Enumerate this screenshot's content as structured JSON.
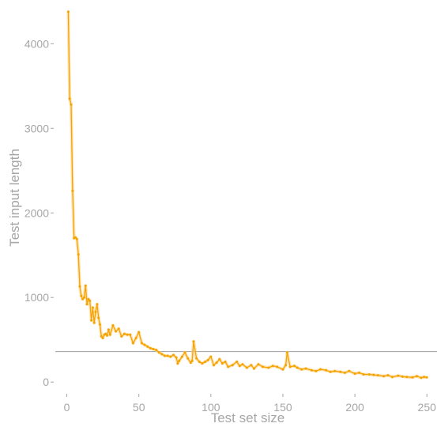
{
  "chart_data": {
    "type": "line",
    "title": "",
    "xlabel": "Test set size",
    "ylabel": "Test input length",
    "xlim": [
      -8,
      257
    ],
    "ylim": [
      -120,
      4480
    ],
    "xticks": [
      0,
      50,
      100,
      150,
      200,
      250
    ],
    "yticks": [
      0,
      1000,
      2000,
      3000,
      4000
    ],
    "xtick_labels": [
      "0",
      "50",
      "100",
      "150",
      "200",
      "250"
    ],
    "ytick_labels": [
      "0",
      "1000",
      "2000",
      "3000",
      "4000"
    ],
    "grid": false,
    "reference_line": {
      "y": 360,
      "color": "#9e9e9e"
    },
    "series": [
      {
        "color": "#f5a300",
        "x": [
          1,
          2,
          3,
          4,
          5,
          6,
          7,
          8,
          9,
          10,
          11,
          12,
          13,
          14,
          15,
          16,
          17,
          18,
          19,
          20,
          21,
          22,
          23,
          24,
          25,
          26,
          27,
          28,
          29,
          30,
          32,
          34,
          36,
          38,
          40,
          42,
          44,
          46,
          48,
          50,
          52,
          54,
          56,
          58,
          60,
          62,
          64,
          66,
          68,
          70,
          72,
          74,
          76,
          77,
          78,
          80,
          82,
          84,
          86,
          87,
          88,
          90,
          92,
          94,
          96,
          98,
          100,
          102,
          104,
          106,
          108,
          110,
          112,
          115,
          118,
          120,
          122,
          125,
          128,
          130,
          133,
          136,
          140,
          143,
          146,
          150,
          152,
          153,
          155,
          158,
          160,
          163,
          166,
          170,
          173,
          176,
          180,
          183,
          186,
          190,
          193,
          196,
          200,
          203,
          206,
          210,
          213,
          216,
          220,
          223,
          226,
          230,
          233,
          236,
          240,
          243,
          246,
          248,
          250
        ],
        "y": [
          4380,
          3350,
          3280,
          2260,
          1700,
          1710,
          1690,
          1510,
          1130,
          1020,
          980,
          1000,
          1140,
          920,
          980,
          960,
          730,
          880,
          700,
          830,
          920,
          760,
          680,
          540,
          520,
          560,
          570,
          550,
          620,
          560,
          670,
          600,
          630,
          540,
          570,
          560,
          560,
          460,
          520,
          590,
          460,
          440,
          420,
          400,
          390,
          380,
          350,
          330,
          310,
          310,
          300,
          320,
          290,
          220,
          250,
          300,
          350,
          280,
          230,
          250,
          480,
          280,
          240,
          220,
          240,
          260,
          300,
          200,
          230,
          270,
          220,
          240,
          180,
          200,
          240,
          190,
          210,
          170,
          200,
          160,
          210,
          180,
          170,
          190,
          180,
          150,
          200,
          350,
          180,
          190,
          170,
          150,
          160,
          140,
          130,
          150,
          140,
          120,
          130,
          120,
          110,
          130,
          100,
          110,
          90,
          90,
          85,
          80,
          70,
          80,
          60,
          75,
          65,
          60,
          55,
          70,
          50,
          60,
          55
        ]
      }
    ]
  }
}
